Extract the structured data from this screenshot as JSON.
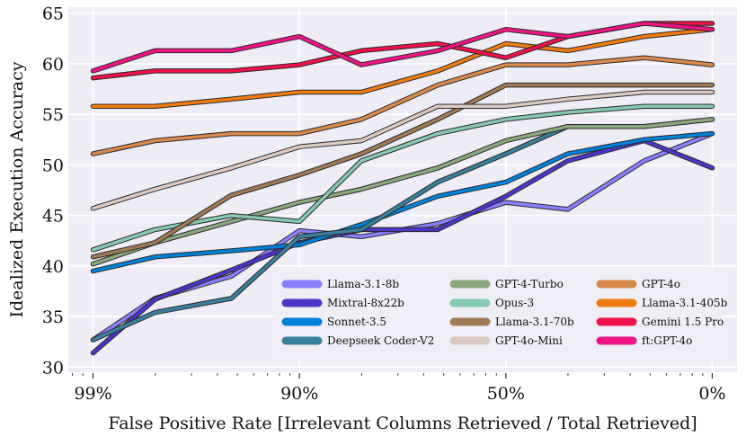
{
  "chart_data": {
    "type": "line",
    "title": "",
    "xlabel": "False Positive Rate [Irrelevant Columns Retrieved / Total Retrieved]",
    "ylabel": "Idealized Execution Accuracy",
    "ylim": [
      29.5,
      65.6
    ],
    "y_ticks": [
      30,
      35,
      40,
      45,
      50,
      55,
      60,
      65
    ],
    "x_ticks": [
      {
        "x": 0,
        "label": "99%"
      },
      {
        "x": 1,
        "label": "90%"
      },
      {
        "x": 2,
        "label": "50%"
      },
      {
        "x": 3,
        "label": "0%"
      }
    ],
    "xlim": [
      -0.12,
      3.12
    ],
    "x": [
      0,
      0.3,
      0.67,
      1,
      1.3,
      1.67,
      2,
      2.3,
      2.67,
      3
    ],
    "grid": true,
    "legend_position": "lower-right",
    "series": [
      {
        "name": "Llama-3.1-8b",
        "color": "#8a80ff",
        "values": [
          32.7,
          36.8,
          39.0,
          43.5,
          42.9,
          44.2,
          46.3,
          45.6,
          50.4,
          53.1
        ]
      },
      {
        "name": "Mixtral-8x22b",
        "color": "#4b36c8",
        "values": [
          31.4,
          36.7,
          39.6,
          42.3,
          43.6,
          43.6,
          46.9,
          50.4,
          52.4,
          49.7
        ]
      },
      {
        "name": "Sonnet-3.5",
        "color": "#0081d9",
        "values": [
          39.5,
          40.9,
          41.5,
          42.1,
          44.1,
          46.9,
          48.3,
          51.1,
          52.5,
          53.1
        ]
      },
      {
        "name": "Deepseek Coder-V2",
        "color": "#3a7f9c",
        "values": [
          32.7,
          35.4,
          36.8,
          42.9,
          43.6,
          48.3,
          51.1,
          53.8,
          53.8,
          54.5
        ]
      },
      {
        "name": "GPT-4-Turbo",
        "color": "#8aa77e",
        "values": [
          40.2,
          42.3,
          44.4,
          46.3,
          47.6,
          49.7,
          52.4,
          53.8,
          53.8,
          54.5
        ]
      },
      {
        "name": "Opus-3",
        "color": "#85c9b3",
        "values": [
          41.6,
          43.6,
          45.0,
          44.4,
          50.4,
          53.1,
          54.5,
          55.2,
          55.8,
          55.8
        ]
      },
      {
        "name": "Llama-3.1-70b",
        "color": "#a07a55",
        "values": [
          40.9,
          42.3,
          47.0,
          49.0,
          51.1,
          54.5,
          57.9,
          57.9,
          57.9,
          57.9
        ]
      },
      {
        "name": "GPT-4o-Mini",
        "color": "#dcc9c2",
        "values": [
          45.7,
          47.6,
          49.7,
          51.8,
          52.4,
          55.8,
          55.8,
          56.5,
          57.2,
          57.2
        ]
      },
      {
        "name": "GPT-4o",
        "color": "#d98a4c",
        "values": [
          51.1,
          52.4,
          53.1,
          53.1,
          54.5,
          57.9,
          59.9,
          59.9,
          60.6,
          59.9
        ]
      },
      {
        "name": "Llama-3.1-405b",
        "color": "#f07b10",
        "values": [
          55.8,
          55.8,
          56.5,
          57.2,
          57.2,
          59.3,
          62.0,
          61.3,
          62.7,
          63.4
        ]
      },
      {
        "name": "Gemini 1.5 Pro",
        "color": "#f0104a",
        "values": [
          58.6,
          59.3,
          59.3,
          59.9,
          61.3,
          62.0,
          60.6,
          62.7,
          64.0,
          64.0
        ]
      },
      {
        "name": "ft:GPT-4o",
        "color": "#ee1484",
        "values": [
          59.3,
          61.3,
          61.3,
          62.7,
          59.9,
          61.3,
          63.4,
          62.7,
          64.0,
          63.4
        ]
      }
    ]
  }
}
